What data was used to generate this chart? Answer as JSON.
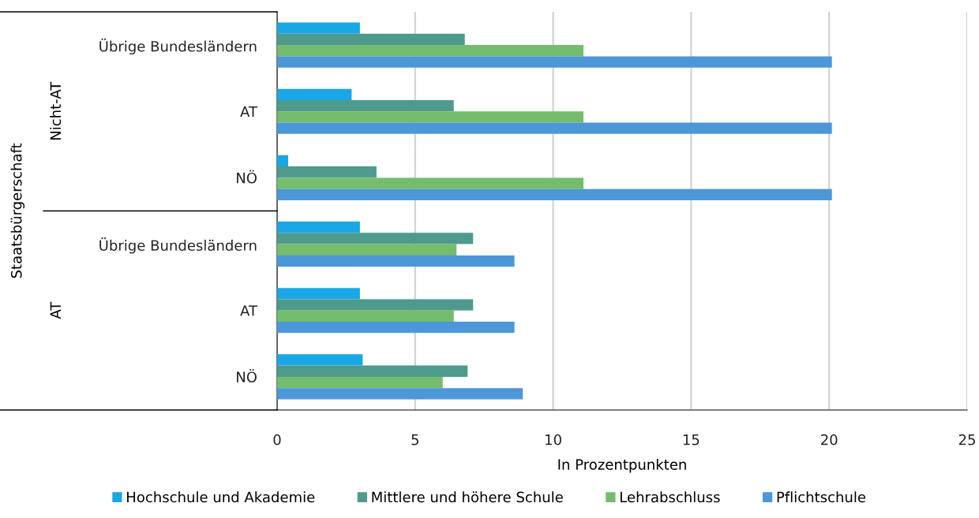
{
  "chart_data": {
    "type": "bar",
    "orientation": "horizontal",
    "xlabel": "In Prozentpunkten",
    "categories": [
      "Übrige Bundesländern",
      "AT",
      "NÖ",
      "Übrige Bundesländern",
      "AT",
      "NÖ"
    ],
    "annotations": [
      "Staatsbürgerschaft",
      "Nicht-AT",
      "AT"
    ],
    "series": [
      {
        "name": "Hochschule und Akademie",
        "color": "#1aa7e6",
        "values": [
          3.0,
          2.7,
          0.4,
          3.0,
          3.0,
          3.1
        ]
      },
      {
        "name": "Mittlere und höhere Schule",
        "color": "#4e9a8c",
        "values": [
          6.8,
          6.4,
          3.6,
          7.1,
          7.1,
          6.9
        ]
      },
      {
        "name": "Lehrabschluss",
        "color": "#74bd6e",
        "values": [
          11.1,
          11.1,
          11.1,
          6.5,
          6.4,
          6.0
        ]
      },
      {
        "name": "Pflichtschule",
        "color": "#4c97d8",
        "values": [
          20.1,
          20.1,
          20.1,
          8.6,
          8.6,
          8.9
        ]
      }
    ],
    "xlim": [
      0,
      25
    ],
    "xticks": [
      0,
      5,
      10,
      15,
      20,
      25
    ],
    "grid": "x",
    "legend": "bottom"
  }
}
